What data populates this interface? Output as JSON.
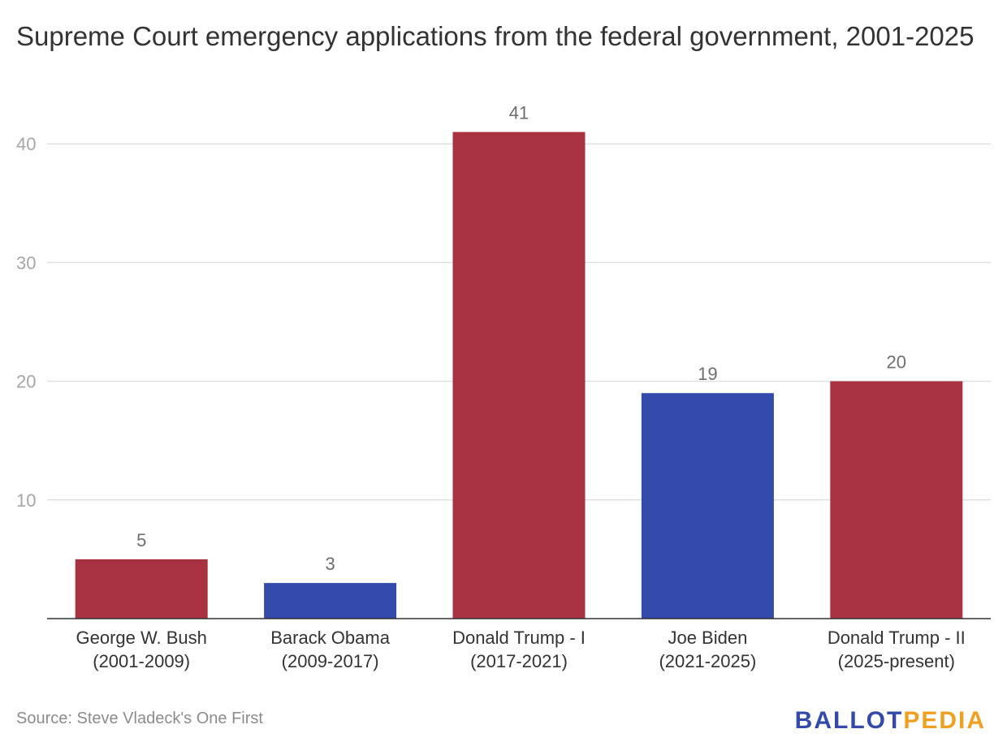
{
  "title": "Supreme Court emergency applications from the federal government, 2001-2025",
  "source": "Source: Steve Vladeck's One First",
  "logo": {
    "part1": "BALLOT",
    "part2": "PEDIA",
    "color1": "#334aab",
    "color2": "#f0a020"
  },
  "chart_data": {
    "type": "bar",
    "title": "Supreme Court emergency applications from the federal government, 2001-2025",
    "xlabel": "",
    "ylabel": "",
    "ylim": [
      0,
      40
    ],
    "yticks": [
      10,
      20,
      30,
      40
    ],
    "grid": true,
    "legend": "none",
    "categories": [
      {
        "line1": "George W. Bush",
        "line2": "(2001-2009)"
      },
      {
        "line1": "Barack Obama",
        "line2": "(2009-2017)"
      },
      {
        "line1": "Donald Trump - I",
        "line2": "(2017-2021)"
      },
      {
        "line1": "Joe Biden",
        "line2": "(2021-2025)"
      },
      {
        "line1": "Donald Trump - II",
        "line2": "(2025-present)"
      }
    ],
    "values": [
      5,
      3,
      41,
      19,
      20
    ],
    "colors": [
      "#a83240",
      "#334aab",
      "#a83240",
      "#334aab",
      "#a83240"
    ]
  }
}
